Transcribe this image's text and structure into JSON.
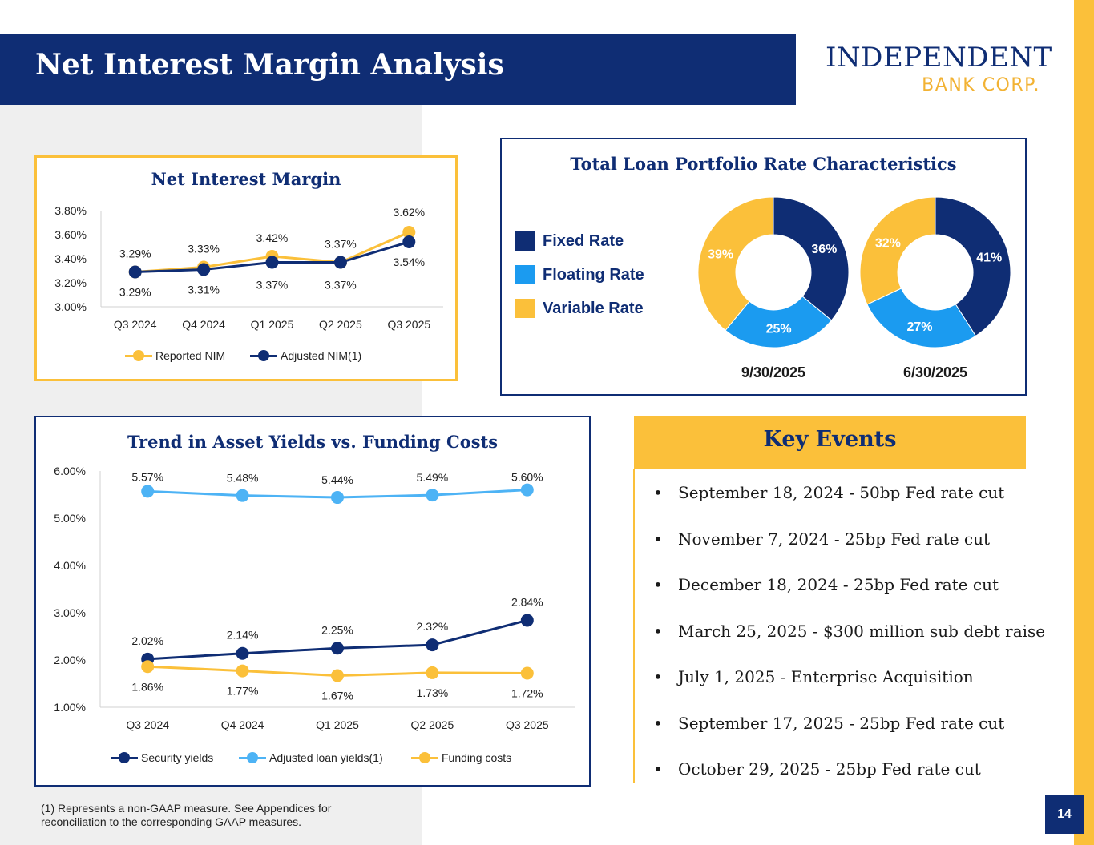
{
  "header": {
    "title": "Net Interest Margin Analysis"
  },
  "logo": {
    "line1": "INDEPENDENT",
    "line2": "BANK CORP."
  },
  "colors": {
    "navy": "#0f2d74",
    "gold": "#fbc03a",
    "light_blue": "#1b9bf0",
    "sky": "#4db3f5"
  },
  "chart_data": [
    {
      "id": "nim",
      "type": "line",
      "title": "Net Interest Margin",
      "categories": [
        "Q3 2024",
        "Q4 2024",
        "Q1 2025",
        "Q2 2025",
        "Q3 2025"
      ],
      "ylim": [
        3.0,
        3.8
      ],
      "yticks": [
        "3.00%",
        "3.20%",
        "3.40%",
        "3.60%",
        "3.80%"
      ],
      "series": [
        {
          "name": "Reported NIM",
          "color": "#fbc03a",
          "values": [
            3.29,
            3.33,
            3.42,
            3.37,
            3.62
          ],
          "labels": [
            "3.29%",
            "3.33%",
            "3.42%",
            "3.37%",
            "3.62%"
          ]
        },
        {
          "name": "Adjusted NIM(1)",
          "color": "#0f2d74",
          "values": [
            3.29,
            3.31,
            3.37,
            3.37,
            3.54
          ],
          "labels": [
            "3.29%",
            "3.31%",
            "3.37%",
            "3.37%",
            "3.54%"
          ]
        }
      ]
    },
    {
      "id": "loan-mix",
      "type": "pie",
      "title": "Total Loan Portfolio Rate Characteristics",
      "legend": [
        {
          "name": "Fixed Rate",
          "color": "#0f2d74"
        },
        {
          "name": "Floating Rate",
          "color": "#1b9bf0"
        },
        {
          "name": "Variable Rate",
          "color": "#fbc03a"
        }
      ],
      "donuts": [
        {
          "label": "9/30/2025",
          "values": [
            36,
            25,
            39
          ],
          "labels": [
            "36%",
            "25%",
            "39%"
          ]
        },
        {
          "label": "6/30/2025",
          "values": [
            41,
            27,
            32
          ],
          "labels": [
            "41%",
            "27%",
            "32%"
          ]
        }
      ]
    },
    {
      "id": "yields",
      "type": "line",
      "title": "Trend in Asset Yields vs. Funding Costs",
      "categories": [
        "Q3 2024",
        "Q4 2024",
        "Q1 2025",
        "Q2 2025",
        "Q3 2025"
      ],
      "ylim": [
        1.0,
        6.0
      ],
      "yticks": [
        "1.00%",
        "2.00%",
        "3.00%",
        "4.00%",
        "5.00%",
        "6.00%"
      ],
      "series": [
        {
          "name": "Security yields",
          "color": "#0f2d74",
          "values": [
            2.02,
            2.14,
            2.25,
            2.32,
            2.84
          ],
          "labels": [
            "2.02%",
            "2.14%",
            "2.25%",
            "2.32%",
            "2.84%"
          ]
        },
        {
          "name": "Adjusted loan yields(1)",
          "color": "#4db3f5",
          "values": [
            5.57,
            5.48,
            5.44,
            5.49,
            5.6
          ],
          "labels": [
            "5.57%",
            "5.48%",
            "5.44%",
            "5.49%",
            "5.60%"
          ]
        },
        {
          "name": "Funding costs",
          "color": "#fbc03a",
          "values": [
            1.86,
            1.77,
            1.67,
            1.73,
            1.72
          ],
          "labels": [
            "1.86%",
            "1.77%",
            "1.67%",
            "1.73%",
            "1.72%"
          ]
        }
      ]
    }
  ],
  "key_events": {
    "title": "Key Events",
    "items": [
      "September 18, 2024 - 50bp Fed rate cut",
      "November 7, 2024 - 25bp Fed rate cut",
      "December 18, 2024 - 25bp Fed rate cut",
      "March 25, 2025 - $300 million sub debt raise",
      "July 1, 2025 - Enterprise Acquisition",
      "September 17, 2025 - 25bp Fed rate cut",
      "October 29, 2025 - 25bp Fed rate cut"
    ]
  },
  "footnote": "(1) Represents a non-GAAP measure. See Appendices for reconciliation to the corresponding GAAP measures.",
  "page_number": "14"
}
